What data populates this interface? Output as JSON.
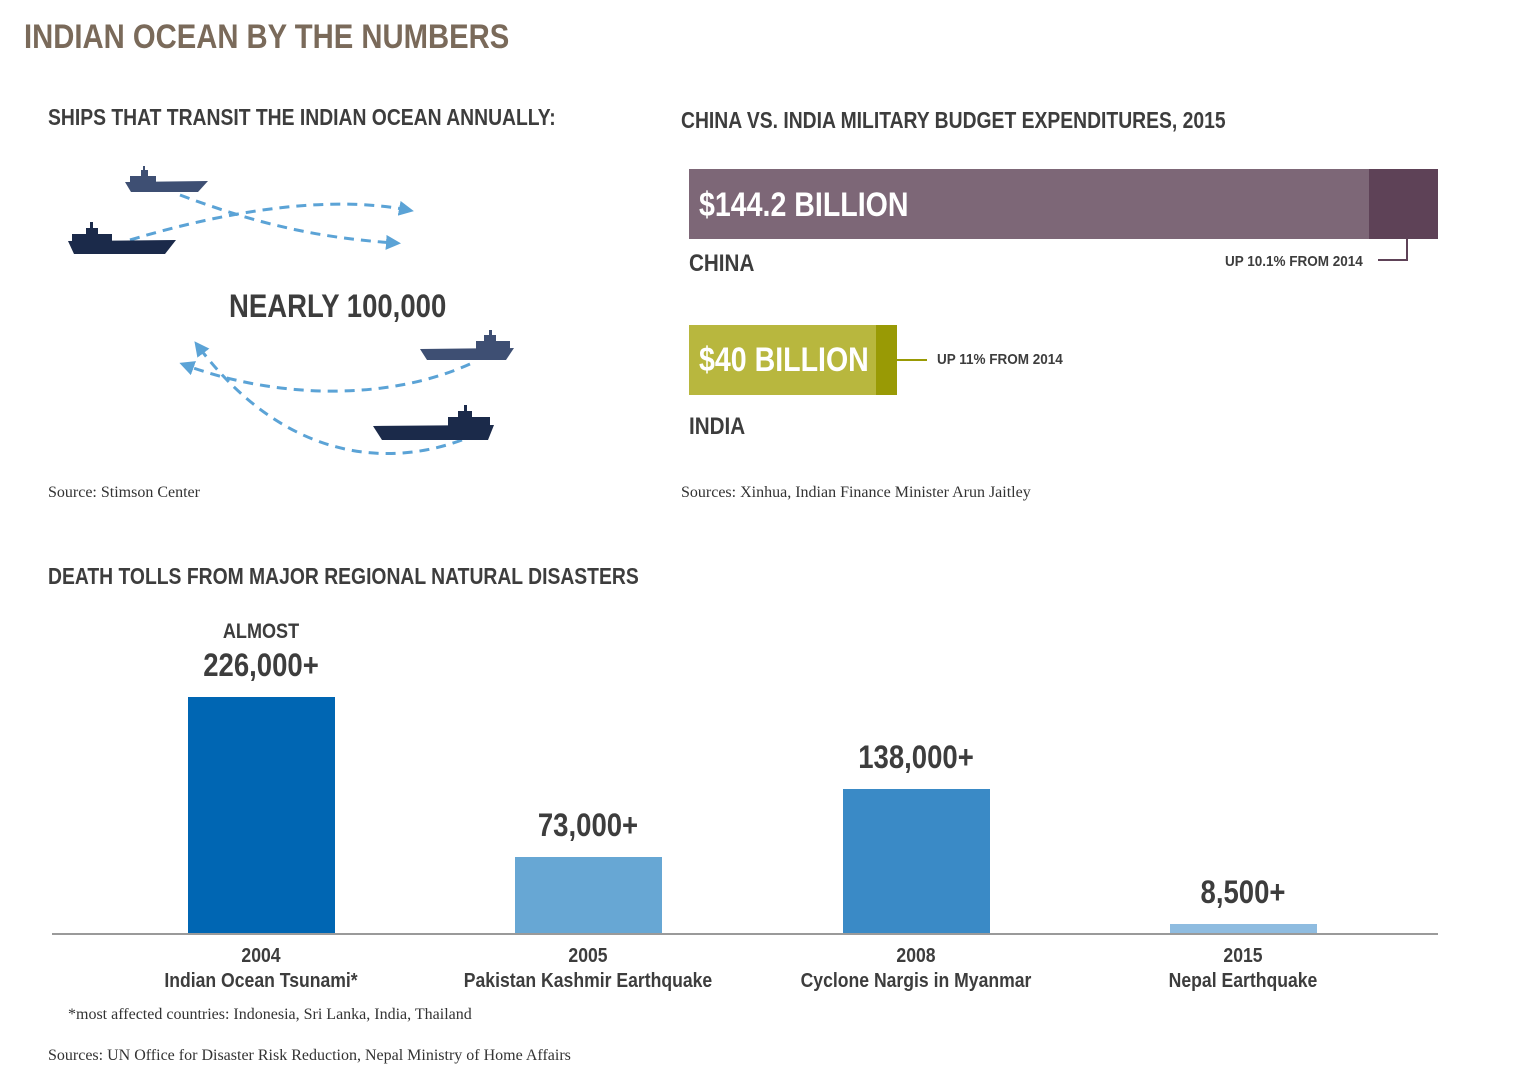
{
  "title": "INDIAN OCEAN BY THE NUMBERS",
  "ships": {
    "heading": "SHIPS THAT TRANSIT THE INDIAN OCEAN ANNUALLY:",
    "count": "NEARLY 100,000",
    "source": "Source: Stimson Center",
    "colors": {
      "ship_dark": "#1b2a4a",
      "ship_mid": "#3e4f73",
      "arrow": "#5ba3d6"
    }
  },
  "military": {
    "heading": "CHINA VS. INDIA MILITARY BUDGET EXPENDITURES, 2015",
    "source": "Sources: Xinhua, Indian Finance Minister Arun Jaitley"
  },
  "disasters": {
    "heading": "DEATH TOLLS FROM MAJOR REGIONAL NATURAL DISASTERS",
    "footnote": "*most affected countries: Indonesia, Sri Lanka, India, Thailand",
    "source": "Sources: UN Office for Disaster Risk Reduction, Nepal Ministry of Home Affairs"
  },
  "chart_data": [
    {
      "type": "bar",
      "orientation": "horizontal",
      "title": "CHINA VS. INDIA MILITARY BUDGET EXPENDITURES, 2015",
      "categories": [
        "CHINA",
        "INDIA"
      ],
      "values": [
        144.2,
        40
      ],
      "unit": "billion USD",
      "labels": [
        "$144.2 BILLION",
        "$40 BILLION"
      ],
      "previous_year_values": [
        131.0,
        36.0
      ],
      "changes": [
        "UP 10.1% FROM 2014",
        "UP 11% FROM 2014"
      ],
      "colors": [
        {
          "bar": "#7d6777",
          "increase": "#5e4257"
        },
        {
          "bar": "#b8b73e",
          "increase": "#999a05"
        }
      ]
    },
    {
      "type": "bar",
      "title": "DEATH TOLLS FROM MAJOR REGIONAL NATURAL DISASTERS",
      "categories": [
        {
          "year": "2004",
          "name": "Indian Ocean Tsunami*"
        },
        {
          "year": "2005",
          "name": "Pakistan Kashmir Earthquake"
        },
        {
          "year": "2008",
          "name": "Cyclone Nargis in Myanmar"
        },
        {
          "year": "2015",
          "name": "Nepal Earthquake"
        }
      ],
      "values": [
        226000,
        73000,
        138000,
        8500
      ],
      "labels": [
        "226,000+",
        "73,000+",
        "138,000+",
        "8,500+"
      ],
      "prefixes": [
        "ALMOST",
        "",
        "",
        ""
      ],
      "colors": [
        "#0066b3",
        "#67a7d4",
        "#3a8ac6",
        "#8fbce0"
      ]
    }
  ]
}
